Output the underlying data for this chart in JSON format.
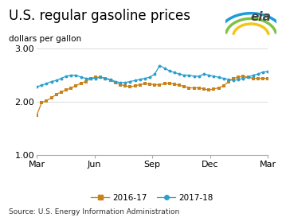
{
  "title": "U.S. regular gasoline prices",
  "ylabel": "dollars per gallon",
  "source": "Source: U.S. Energy Information Administration",
  "ylim": [
    1.0,
    3.0
  ],
  "yticks": [
    1.0,
    2.0,
    3.0
  ],
  "xtick_labels": [
    "Mar",
    "Jun",
    "Sep",
    "Dec",
    "Mar"
  ],
  "color_2016": "#C8821A",
  "color_2017": "#2B9FCC",
  "series_2016_17": [
    1.74,
    1.98,
    2.02,
    2.07,
    2.14,
    2.18,
    2.22,
    2.26,
    2.3,
    2.35,
    2.38,
    2.44,
    2.46,
    2.46,
    2.44,
    2.4,
    2.36,
    2.32,
    2.3,
    2.28,
    2.3,
    2.32,
    2.34,
    2.33,
    2.32,
    2.32,
    2.34,
    2.35,
    2.33,
    2.31,
    2.29,
    2.26,
    2.26,
    2.26,
    2.24,
    2.22,
    2.24,
    2.26,
    2.3,
    2.38,
    2.44,
    2.46,
    2.48,
    2.46,
    2.44,
    2.44,
    2.44,
    2.44
  ],
  "series_2017_18": [
    2.28,
    2.31,
    2.34,
    2.38,
    2.4,
    2.44,
    2.48,
    2.5,
    2.5,
    2.46,
    2.44,
    2.44,
    2.44,
    2.46,
    2.44,
    2.42,
    2.38,
    2.36,
    2.36,
    2.38,
    2.4,
    2.42,
    2.44,
    2.46,
    2.52,
    2.68,
    2.63,
    2.58,
    2.55,
    2.52,
    2.5,
    2.5,
    2.48,
    2.48,
    2.52,
    2.5,
    2.48,
    2.46,
    2.44,
    2.42,
    2.4,
    2.42,
    2.44,
    2.46,
    2.5,
    2.52,
    2.56,
    2.57
  ],
  "title_fontsize": 12,
  "label_fontsize": 7.5,
  "tick_fontsize": 8,
  "legend_fontsize": 7.5,
  "source_fontsize": 6.5
}
